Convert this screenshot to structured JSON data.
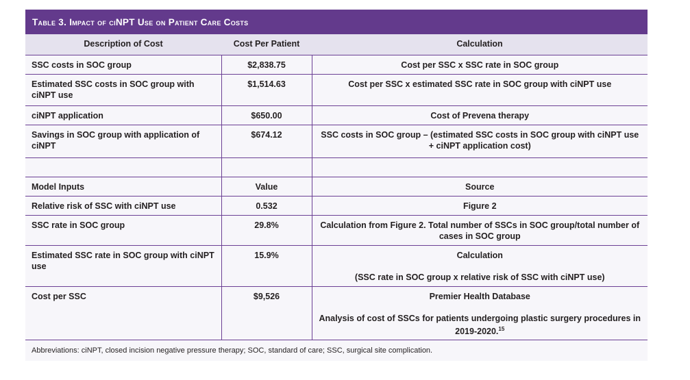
{
  "title": "Table 3. Impact of ciNPT Use on Patient Care Costs",
  "headers": [
    "Description of Cost",
    "Cost Per Patient",
    "Calculation"
  ],
  "rows": [
    {
      "desc": "SSC costs in SOC group",
      "value": "$2,838.75",
      "calc": "Cost per SSC x SSC rate in SOC group"
    },
    {
      "desc": "Estimated SSC costs in SOC group with ciNPT use",
      "value": "$1,514.63",
      "calc": "Cost per SSC x estimated SSC rate in SOC group with ciNPT use"
    },
    {
      "desc": "ciNPT application",
      "value": "$650.00",
      "calc": "Cost of Prevena therapy"
    },
    {
      "desc": "Savings in SOC group with application of ciNPT",
      "value": "$674.12",
      "calc": "SSC costs in SOC group – (estimated SSC costs in SOC group with ciNPT use + ciNPT application cost)"
    },
    {
      "desc": "",
      "value": "",
      "calc": ""
    },
    {
      "desc": "Model Inputs",
      "value": "Value",
      "calc": "Source"
    },
    {
      "desc": "Relative risk of SSC with ciNPT use",
      "value": "0.532",
      "calc": "Figure 2"
    },
    {
      "desc": "SSC rate in SOC group",
      "value": "29.8%",
      "calc": "Calculation from Figure 2. Total number of SSCs in SOC group/total number of cases in SOC group"
    },
    {
      "desc": "Estimated SSC rate in SOC group with ciNPT use",
      "value": "15.9%",
      "calc": "Calculation",
      "calc2": "(SSC rate in SOC group x relative risk of SSC with ciNPT use)"
    },
    {
      "desc": "Cost per SSC",
      "value": "$9,526",
      "calc": "Premier Health Database",
      "calc2": "Analysis of cost of SSCs for patients undergoing plastic surgery procedures in 2019-2020.",
      "calc2_sup": "15"
    }
  ],
  "footnote": "Abbreviations: ciNPT, closed incision negative pressure therapy; SOC, standard of care; SSC, surgical site complication.",
  "colors": {
    "title_bg": "#633a8c",
    "header_bg": "#e5e2ee",
    "border": "#6b3f94",
    "body_bg": "#f7f6fa"
  }
}
